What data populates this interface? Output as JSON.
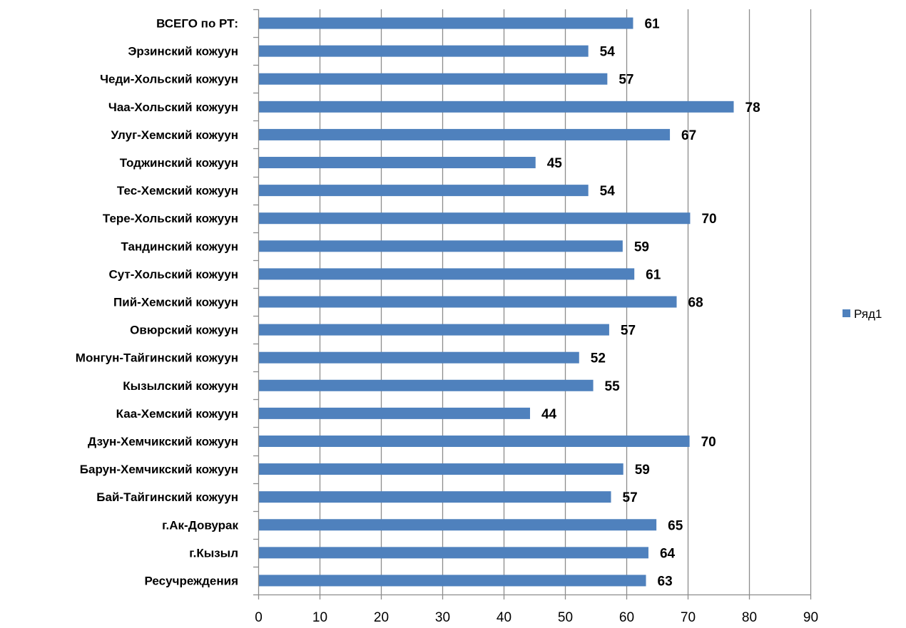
{
  "chart_data": {
    "type": "bar",
    "orientation": "horizontal",
    "categories": [
      "ВСЕГО по РТ:",
      "Эрзинский кожуун",
      "Чеди-Хольский кожуун",
      "Чаа-Хольский кожуун",
      "Улуг-Хемский кожуун",
      "Тоджинский кожуун",
      "Тес-Хемский кожуун",
      "Тере-Хольский кожуун",
      "Тандинский кожуун",
      "Сут-Хольский кожуун",
      "Пий-Хемский кожуун",
      "Овюрский  кожуун",
      "Монгун-Тайгинский кожуун",
      "Кызылский кожуун",
      "Каа-Хемский кожуун",
      "Дзун-Хемчикский кожуун",
      "Барун-Хемчикский кожуун",
      "Бай-Тайгинский кожуун",
      "г.Ак-Довурак",
      "г.Кызыл",
      "Ресучреждения"
    ],
    "series": [
      {
        "name": "Ряд1",
        "values": [
          61,
          54,
          57,
          78,
          67,
          45,
          54,
          70,
          59,
          61,
          68,
          57,
          52,
          55,
          44,
          70,
          59,
          57,
          65,
          64,
          63
        ],
        "display_values": [
          61.1,
          53.8,
          56.9,
          77.5,
          67.1,
          45.2,
          53.8,
          70.4,
          59.4,
          61.3,
          68.2,
          57.2,
          52.3,
          54.6,
          44.3,
          70.3,
          59.5,
          57.5,
          64.9,
          63.6,
          63.2
        ],
        "labels": [
          "61",
          "54",
          "57",
          "78",
          "67",
          "45",
          "54",
          "70",
          "59",
          "61",
          "68",
          "57",
          "52",
          "55",
          "44",
          "70",
          "59",
          "57",
          "65",
          "64",
          "63"
        ],
        "color": "#4F81BD"
      }
    ],
    "xlim": [
      0,
      90
    ],
    "x_ticks": [
      0,
      10,
      20,
      30,
      40,
      50,
      60,
      70,
      80,
      90
    ],
    "tick_labels": [
      "0",
      "10",
      "20",
      "30",
      "40",
      "50",
      "60",
      "70",
      "80",
      "90"
    ],
    "grid": true,
    "legend": {
      "position": "right",
      "entries": [
        "Ряд1"
      ]
    },
    "title": "",
    "xlabel": "",
    "ylabel": ""
  }
}
